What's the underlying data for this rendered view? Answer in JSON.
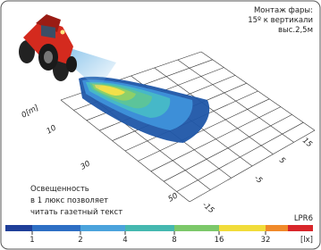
{
  "mount_note": [
    "Монтаж фары:",
    "15º к вертикали",
    "выс.2,5м"
  ],
  "distance_labels": [
    "0[m]",
    "10",
    "30",
    "50"
  ],
  "lateral_labels": [
    "15",
    "5",
    "-5",
    "-15"
  ],
  "illuminance_note": [
    "Освещенность",
    "в 1 люкс позволяет",
    "читать газетный текст"
  ],
  "model": "LPR6",
  "scale": {
    "labels": [
      1,
      2,
      4,
      8,
      16,
      32
    ],
    "unit": "[lx]"
  }
}
